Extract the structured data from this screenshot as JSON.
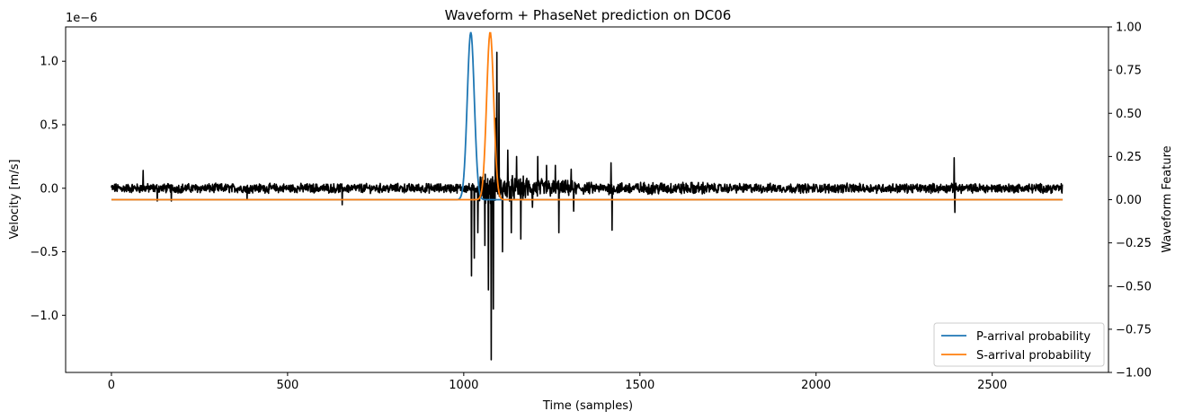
{
  "chart_data": {
    "type": "line",
    "title": "Waveform + PhaseNet prediction on DC06",
    "xlabel": "Time (samples)",
    "ylabel_left": "Velocity [m/s]",
    "ylabel_right": "Waveform Feature",
    "offset_text": "1e−6",
    "xlim": [
      -130,
      2830
    ],
    "ylim_left": [
      -1.45,
      1.27
    ],
    "ylim_right": [
      -1.0,
      1.0
    ],
    "x_ticks": [
      0,
      500,
      1000,
      1500,
      2000,
      2500
    ],
    "x_tick_labels": [
      "0",
      "500",
      "1000",
      "1500",
      "2000",
      "2500"
    ],
    "y_left_ticks": [
      -1.0,
      -0.5,
      0.0,
      0.5,
      1.0
    ],
    "y_left_tick_labels": [
      "−1.0",
      "−0.5",
      "0.0",
      "0.5",
      "1.0"
    ],
    "y_right_ticks": [
      -1.0,
      -0.75,
      -0.5,
      -0.25,
      0.0,
      0.25,
      0.5,
      0.75,
      1.0
    ],
    "y_right_tick_labels": [
      "−1.00",
      "−0.75",
      "−0.50",
      "−0.25",
      "0.00",
      "0.25",
      "0.50",
      "0.75",
      "1.00"
    ],
    "grid": false,
    "legend_placement": "lower-right",
    "series": [
      {
        "name": "P-arrival probability",
        "axis": "right",
        "color": "#1f77b4",
        "peak_x": 1020,
        "peak_value": 0.97,
        "sigma": 10,
        "start": 0,
        "end": 2700
      },
      {
        "name": "S-arrival probability",
        "axis": "right",
        "color": "#ff7f0e",
        "peak_x": 1075,
        "peak_value": 0.97,
        "sigma": 10,
        "start": 0,
        "end": 2700
      }
    ],
    "waveform": {
      "axis": "left",
      "color": "#000000",
      "units": "1e-6 m/s",
      "samples": 2700,
      "x_start": 0,
      "noise_amplitude": 0.03,
      "features": [
        {
          "x": 90,
          "value": 0.14
        },
        {
          "x": 130,
          "value": -0.1
        },
        {
          "x": 170,
          "value": -0.1
        },
        {
          "x": 385,
          "value": -0.09
        },
        {
          "x": 655,
          "value": 0.1
        },
        {
          "x": 655,
          "value": -0.13
        },
        {
          "x": 1022,
          "value": -0.69
        },
        {
          "x": 1030,
          "value": -0.55
        },
        {
          "x": 1040,
          "value": -0.35
        },
        {
          "x": 1060,
          "value": -0.45
        },
        {
          "x": 1070,
          "value": -0.8
        },
        {
          "x": 1078,
          "value": -1.35
        },
        {
          "x": 1084,
          "value": -0.95
        },
        {
          "x": 1090,
          "value": 0.55
        },
        {
          "x": 1094,
          "value": 1.07
        },
        {
          "x": 1100,
          "value": 0.75
        },
        {
          "x": 1110,
          "value": -0.5
        },
        {
          "x": 1125,
          "value": 0.3
        },
        {
          "x": 1135,
          "value": -0.35
        },
        {
          "x": 1150,
          "value": 0.25
        },
        {
          "x": 1162,
          "value": -0.4
        },
        {
          "x": 1195,
          "value": -0.15
        },
        {
          "x": 1210,
          "value": 0.25
        },
        {
          "x": 1235,
          "value": 0.18
        },
        {
          "x": 1260,
          "value": 0.18
        },
        {
          "x": 1270,
          "value": -0.35
        },
        {
          "x": 1305,
          "value": 0.15
        },
        {
          "x": 1312,
          "value": -0.18
        },
        {
          "x": 1418,
          "value": 0.2
        },
        {
          "x": 1421,
          "value": -0.33
        },
        {
          "x": 2392,
          "value": 0.24
        },
        {
          "x": 2394,
          "value": -0.19
        }
      ]
    },
    "legend": [
      {
        "label": "P-arrival probability",
        "color": "#1f77b4"
      },
      {
        "label": "S-arrival probability",
        "color": "#ff7f0e"
      }
    ]
  }
}
